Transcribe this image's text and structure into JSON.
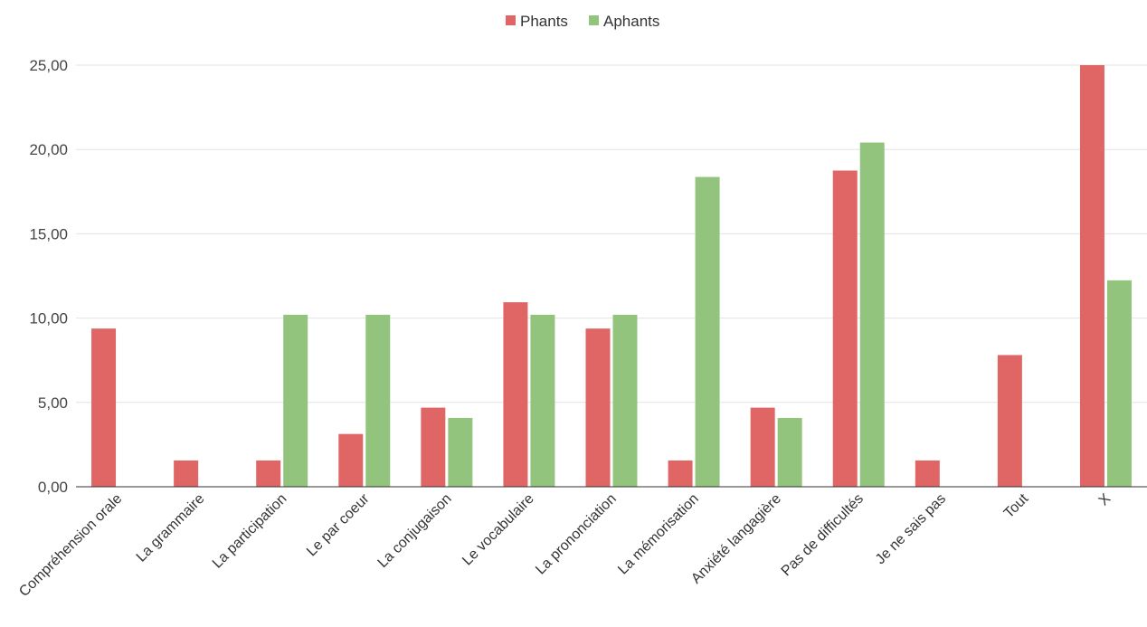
{
  "chart_data": {
    "type": "bar",
    "categories": [
      "Compréhension orale",
      "La grammaire",
      "La participation",
      "Le par coeur",
      "La conjugaison",
      "Le vocabulaire",
      "La prononciation",
      "La mémorisation",
      "Anxiété langagière",
      "Pas de difficultés",
      "Je ne sais pas",
      "Tout",
      "X"
    ],
    "series": [
      {
        "name": "Phants",
        "color": "#e06666",
        "values": [
          9.38,
          1.56,
          1.56,
          3.13,
          4.69,
          10.94,
          9.38,
          1.56,
          4.69,
          18.75,
          1.56,
          7.81,
          25.0
        ]
      },
      {
        "name": "Aphants",
        "color": "#93c47d",
        "values": [
          0,
          0,
          10.2,
          10.2,
          4.08,
          10.2,
          10.2,
          18.37,
          4.08,
          20.41,
          0,
          0,
          12.24
        ]
      }
    ],
    "y_ticks": [
      "0,00",
      "5,00",
      "10,00",
      "15,00",
      "20,00",
      "25,00"
    ],
    "ylim": [
      0,
      25
    ],
    "legend_position": "top-center",
    "grid": true,
    "title": "",
    "xlabel": "",
    "ylabel": ""
  }
}
